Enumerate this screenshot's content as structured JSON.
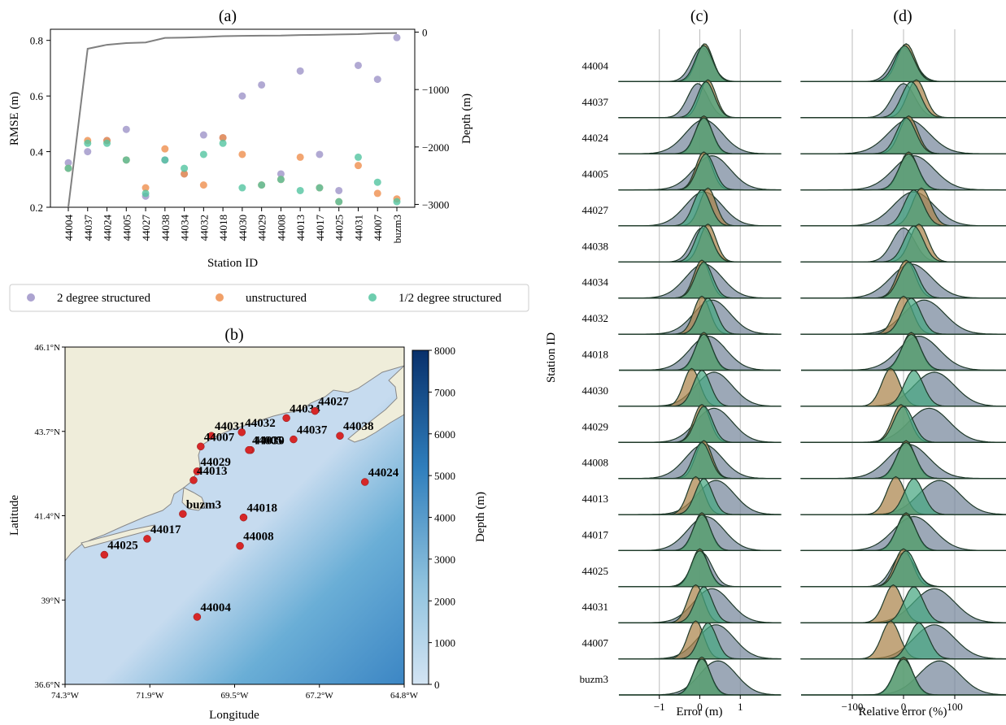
{
  "colors": {
    "twoDeg": "#9d93c8",
    "unstructured": "#ef8f4e",
    "halfDeg": "#53c4a0",
    "depthLine": "#808080",
    "land": "#efedda",
    "buoy": "#d62728",
    "ridgeBase": "#2e8b57"
  },
  "legend": {
    "items": [
      {
        "label": "2 degree structured",
        "color": "#9d93c8"
      },
      {
        "label": "unstructured",
        "color": "#ef8f4e"
      },
      {
        "label": "1/2 degree structured",
        "color": "#53c4a0"
      }
    ]
  },
  "chart_data": [
    {
      "panel": "(a)",
      "type": "scatter",
      "xlabel": "Station ID",
      "ylabel": "RMSE (m)",
      "y2label": "Depth (m)",
      "ylim": [
        0.2,
        0.84
      ],
      "y2lim": [
        -3050,
        50
      ],
      "yticks": [
        "0.2",
        "0.4",
        "0.6",
        "0.8"
      ],
      "y2ticks": [
        "0",
        "−1000",
        "−2000",
        "−3000"
      ],
      "categories": [
        "44004",
        "44037",
        "44024",
        "44005",
        "44027",
        "44038",
        "44034",
        "44032",
        "44018",
        "44030",
        "44029",
        "44008",
        "44013",
        "44017",
        "44025",
        "44031",
        "44007",
        "buzm3"
      ],
      "series": [
        {
          "name": "2 degree structured",
          "values": [
            0.36,
            0.4,
            0.44,
            0.48,
            0.24,
            0.37,
            0.32,
            0.46,
            0.45,
            0.6,
            0.64,
            0.32,
            0.69,
            0.39,
            0.26,
            0.71,
            0.66,
            0.81
          ]
        },
        {
          "name": "unstructured",
          "values": [
            0.34,
            0.44,
            0.44,
            0.37,
            0.27,
            0.41,
            0.32,
            0.28,
            0.45,
            0.39,
            0.28,
            0.3,
            0.38,
            0.27,
            0.22,
            0.35,
            0.25,
            0.23
          ]
        },
        {
          "name": "1/2 degree structured",
          "values": [
            0.34,
            0.43,
            0.43,
            0.37,
            0.25,
            0.37,
            0.34,
            0.39,
            0.43,
            0.27,
            0.28,
            0.3,
            0.26,
            0.27,
            0.22,
            0.38,
            0.29,
            0.22
          ]
        }
      ],
      "depth": [
        -3050,
        -290,
        -220,
        -190,
        -180,
        -100,
        -95,
        -85,
        -70,
        -65,
        -62,
        -60,
        -50,
        -48,
        -40,
        -35,
        -20,
        -15
      ]
    },
    {
      "panel": "(b)",
      "type": "map",
      "xlabel": "Longitude",
      "ylabel": "Latitude",
      "xticks": [
        "74.3°W",
        "71.9°W",
        "69.5°W",
        "67.2°W",
        "64.8°W"
      ],
      "yticks": [
        "46.1°N",
        "43.7°N",
        "41.4°N",
        "39°N",
        "36.6°N"
      ],
      "lon_range": [
        -74.3,
        -64.8
      ],
      "lat_range": [
        36.6,
        46.1
      ],
      "colorbar": {
        "label": "Depth (m)",
        "range": [
          0,
          8000
        ],
        "ticks": [
          "0",
          "1000",
          "2000",
          "3000",
          "4000",
          "5000",
          "6000",
          "7000",
          "8000"
        ]
      },
      "stations": [
        {
          "id": "44034",
          "lon": -68.1,
          "lat": 44.1
        },
        {
          "id": "44027",
          "lon": -67.3,
          "lat": 44.3
        },
        {
          "id": "44031",
          "lon": -70.2,
          "lat": 43.6
        },
        {
          "id": "44037",
          "lon": -67.9,
          "lat": 43.5
        },
        {
          "id": "44038",
          "lon": -66.6,
          "lat": 43.6
        },
        {
          "id": "44007",
          "lon": -70.5,
          "lat": 43.3
        },
        {
          "id": "44032",
          "lon": -69.35,
          "lat": 43.7
        },
        {
          "id": "44030",
          "lon": -69.1,
          "lat": 43.2
        },
        {
          "id": "44005",
          "lon": -69.15,
          "lat": 43.2
        },
        {
          "id": "44029",
          "lon": -70.6,
          "lat": 42.6
        },
        {
          "id": "44024",
          "lon": -65.9,
          "lat": 42.3
        },
        {
          "id": "44013",
          "lon": -70.7,
          "lat": 42.35
        },
        {
          "id": "buzm3",
          "lon": -71.0,
          "lat": 41.4
        },
        {
          "id": "44018",
          "lon": -69.3,
          "lat": 41.3
        },
        {
          "id": "44017",
          "lon": -72.0,
          "lat": 40.7
        },
        {
          "id": "44008",
          "lon": -69.4,
          "lat": 40.5
        },
        {
          "id": "44025",
          "lon": -73.2,
          "lat": 40.25
        },
        {
          "id": "44004",
          "lon": -70.6,
          "lat": 38.5
        }
      ]
    },
    {
      "panel": "(c)",
      "type": "area",
      "xlabel": "Error (m)",
      "ylabel": "Station ID",
      "xlim": [
        -2,
        2
      ],
      "xticks": [
        "−1",
        "0",
        "1"
      ],
      "rows": [
        "44004",
        "44037",
        "44024",
        "44005",
        "44027",
        "44038",
        "44034",
        "44032",
        "44018",
        "44030",
        "44029",
        "44008",
        "44013",
        "44017",
        "44025",
        "44031",
        "44007",
        "buzm3"
      ],
      "series_peaks": [
        {
          "c2": 0.05,
          "cu": 0.12,
          "ch": 0.1
        },
        {
          "c2": -0.05,
          "cu": 0.2,
          "ch": 0.15
        },
        {
          "c2": 0.1,
          "cu": 0.1,
          "ch": 0.1
        },
        {
          "c2": 0.3,
          "cu": 0.1,
          "ch": 0.15
        },
        {
          "c2": 0.1,
          "cu": 0.2,
          "ch": 0.05
        },
        {
          "c2": 0.05,
          "cu": 0.2,
          "ch": 0.1
        },
        {
          "c2": 0.1,
          "cu": 0.05,
          "ch": 0.1
        },
        {
          "c2": 0.3,
          "cu": 0.05,
          "ch": 0.2
        },
        {
          "c2": 0.2,
          "cu": 0.1,
          "ch": 0.1
        },
        {
          "c2": 0.35,
          "cu": -0.2,
          "ch": 0.05
        },
        {
          "c2": 0.35,
          "cu": 0.05,
          "ch": 0.1
        },
        {
          "c2": 0.1,
          "cu": 0.1,
          "ch": 0.05
        },
        {
          "c2": 0.4,
          "cu": -0.1,
          "ch": 0.1
        },
        {
          "c2": 0.15,
          "cu": 0.05,
          "ch": 0.05
        },
        {
          "c2": 0.05,
          "cu": 0.0,
          "ch": 0.0
        },
        {
          "c2": 0.3,
          "cu": -0.1,
          "ch": 0.1
        },
        {
          "c2": 0.4,
          "cu": -0.1,
          "ch": 0.2
        },
        {
          "c2": 0.45,
          "cu": 0.05,
          "ch": 0.05
        }
      ]
    },
    {
      "panel": "(d)",
      "type": "area",
      "xlabel": "Relative error (%)",
      "xlim": [
        -200,
        200
      ],
      "xticks": [
        "−100",
        "0",
        "100"
      ],
      "rows": [
        "44004",
        "44037",
        "44024",
        "44005",
        "44027",
        "44038",
        "44034",
        "44032",
        "44018",
        "44030",
        "44029",
        "44008",
        "44013",
        "44017",
        "44025",
        "44031",
        "44007",
        "buzm3"
      ],
      "series_peaks": [
        {
          "c2": 0,
          "cu": 5,
          "ch": 2
        },
        {
          "c2": 0,
          "cu": 25,
          "ch": 15
        },
        {
          "c2": 10,
          "cu": 10,
          "ch": 5
        },
        {
          "c2": 20,
          "cu": 10,
          "ch": 10
        },
        {
          "c2": 20,
          "cu": 35,
          "ch": 20
        },
        {
          "c2": 0,
          "cu": 30,
          "ch": 20
        },
        {
          "c2": 15,
          "cu": 5,
          "ch": 10
        },
        {
          "c2": 40,
          "cu": 0,
          "ch": 15
        },
        {
          "c2": 30,
          "cu": 15,
          "ch": 15
        },
        {
          "c2": 60,
          "cu": -25,
          "ch": 20
        },
        {
          "c2": 50,
          "cu": -5,
          "ch": 0
        },
        {
          "c2": 10,
          "cu": 5,
          "ch": 5
        },
        {
          "c2": 70,
          "cu": -15,
          "ch": 20
        },
        {
          "c2": 20,
          "cu": 5,
          "ch": 5
        },
        {
          "c2": 0,
          "cu": 0,
          "ch": 5
        },
        {
          "c2": 60,
          "cu": -20,
          "ch": 20
        },
        {
          "c2": 60,
          "cu": -25,
          "ch": 30
        },
        {
          "c2": 70,
          "cu": 0,
          "ch": 0
        }
      ]
    }
  ]
}
